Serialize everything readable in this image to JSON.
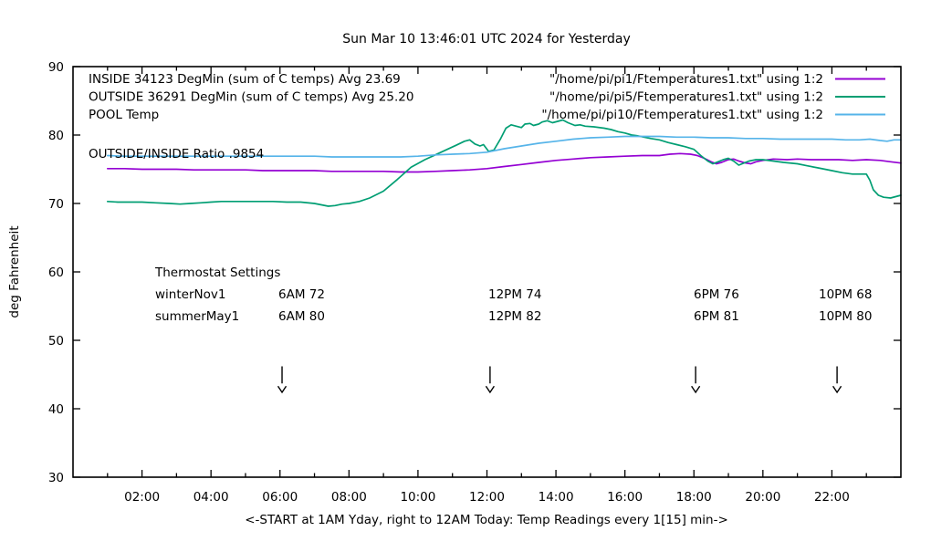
{
  "title": "Sun Mar 10 13:46:01 UTC 2024 for Yesterday",
  "legend": {
    "rows": [
      {
        "label": "INSIDE 34123 DegMin (sum of C temps) Avg 23.69",
        "file": "\"/home/pi/pi1/Ftemperatures1.txt\" using 1:2",
        "color": "#9400d3"
      },
      {
        "label": "OUTSIDE 36291 DegMin (sum of C temps) Avg 25.20",
        "file": "\"/home/pi/pi5/Ftemperatures1.txt\" using 1:2",
        "color": "#009e73"
      },
      {
        "label": "POOL Temp",
        "file": "\"/home/pi/pi10/Ftemperatures1.txt\" using 1:2",
        "color": "#56b4e9"
      }
    ]
  },
  "ratio_annotation": "OUTSIDE/INSIDE Ratio .9854",
  "thermostat": {
    "title": "Thermostat Settings",
    "rows": [
      {
        "name": "winterNov1",
        "entries": [
          "6AM 72",
          "12PM 74",
          "6PM 76",
          "10PM 68"
        ]
      },
      {
        "name": "summerMay1",
        "entries": [
          "6AM 80",
          "12PM 82",
          "6PM 81",
          "10PM 80"
        ]
      }
    ]
  },
  "axes": {
    "ylabel": "deg Fahrenheit",
    "xlabel": "<-START at 1AM Yday, right to 12AM Today:  Temp Readings every 1[15] min->"
  },
  "chart_data": {
    "type": "line",
    "title": "Sun Mar 10 13:46:01 UTC 2024 for Yesterday",
    "xlabel_hours_range": [
      0,
      24
    ],
    "ylim": [
      30,
      90
    ],
    "grid": false,
    "legend_position": "top-inside",
    "x_ticks": [
      {
        "hour": 2,
        "label": "02:00"
      },
      {
        "hour": 4,
        "label": "04:00"
      },
      {
        "hour": 6,
        "label": "06:00"
      },
      {
        "hour": 8,
        "label": "08:00"
      },
      {
        "hour": 10,
        "label": "10:00"
      },
      {
        "hour": 12,
        "label": "12:00"
      },
      {
        "hour": 14,
        "label": "14:00"
      },
      {
        "hour": 16,
        "label": "16:00"
      },
      {
        "hour": 18,
        "label": "18:00"
      },
      {
        "hour": 20,
        "label": "20:00"
      },
      {
        "hour": 22,
        "label": "22:00"
      }
    ],
    "y_ticks": [
      {
        "value": 90,
        "label": "90"
      },
      {
        "value": 80,
        "label": "80"
      },
      {
        "value": 70,
        "label": "70"
      },
      {
        "value": 60,
        "label": "60"
      },
      {
        "value": 50,
        "label": "50"
      },
      {
        "value": 40,
        "label": "40"
      },
      {
        "value": 30,
        "label": "30"
      }
    ],
    "minor_x_tick_every_hours": 1,
    "arrows": {
      "hours": [
        6.06,
        12.09,
        18.05,
        22.15
      ],
      "from_deg": 46.2,
      "to_deg": 42.4
    },
    "series": [
      {
        "name": "INSIDE",
        "color": "#9400d3",
        "points": [
          [
            1,
            75.1
          ],
          [
            1.5,
            75.1
          ],
          [
            2,
            75.0
          ],
          [
            2.5,
            75.0
          ],
          [
            3,
            75.0
          ],
          [
            3.5,
            74.9
          ],
          [
            4,
            74.9
          ],
          [
            4.5,
            74.9
          ],
          [
            5,
            74.9
          ],
          [
            5.5,
            74.8
          ],
          [
            6,
            74.8
          ],
          [
            6.5,
            74.8
          ],
          [
            7,
            74.8
          ],
          [
            7.5,
            74.7
          ],
          [
            8,
            74.7
          ],
          [
            8.5,
            74.7
          ],
          [
            9,
            74.7
          ],
          [
            9.5,
            74.6
          ],
          [
            10,
            74.6
          ],
          [
            10.5,
            74.7
          ],
          [
            11,
            74.8
          ],
          [
            11.5,
            74.9
          ],
          [
            12,
            75.1
          ],
          [
            12.5,
            75.4
          ],
          [
            13,
            75.7
          ],
          [
            13.5,
            76.0
          ],
          [
            14,
            76.3
          ],
          [
            14.5,
            76.5
          ],
          [
            15,
            76.7
          ],
          [
            15.5,
            76.8
          ],
          [
            16,
            76.9
          ],
          [
            16.5,
            77.0
          ],
          [
            17,
            77.0
          ],
          [
            17.3,
            77.2
          ],
          [
            17.6,
            77.3
          ],
          [
            17.9,
            77.2
          ],
          [
            18.1,
            77.0
          ],
          [
            18.3,
            76.6
          ],
          [
            18.5,
            76.1
          ],
          [
            18.65,
            75.8
          ],
          [
            18.8,
            76.0
          ],
          [
            19,
            76.4
          ],
          [
            19.15,
            76.5
          ],
          [
            19.3,
            76.2
          ],
          [
            19.5,
            75.9
          ],
          [
            19.65,
            75.8
          ],
          [
            19.8,
            76.1
          ],
          [
            20,
            76.3
          ],
          [
            20.3,
            76.5
          ],
          [
            20.7,
            76.4
          ],
          [
            21,
            76.5
          ],
          [
            21.4,
            76.4
          ],
          [
            21.8,
            76.4
          ],
          [
            22.2,
            76.4
          ],
          [
            22.6,
            76.3
          ],
          [
            23,
            76.4
          ],
          [
            23.4,
            76.3
          ],
          [
            23.7,
            76.1
          ],
          [
            24,
            75.9
          ]
        ]
      },
      {
        "name": "OUTSIDE",
        "color": "#009e73",
        "points": [
          [
            1,
            70.3
          ],
          [
            1.3,
            70.2
          ],
          [
            1.6,
            70.2
          ],
          [
            2,
            70.2
          ],
          [
            2.4,
            70.1
          ],
          [
            2.8,
            70.0
          ],
          [
            3.1,
            69.9
          ],
          [
            3.4,
            70.0
          ],
          [
            3.7,
            70.1
          ],
          [
            4,
            70.2
          ],
          [
            4.3,
            70.3
          ],
          [
            4.7,
            70.3
          ],
          [
            5,
            70.3
          ],
          [
            5.4,
            70.3
          ],
          [
            5.8,
            70.3
          ],
          [
            6.2,
            70.2
          ],
          [
            6.6,
            70.2
          ],
          [
            7,
            70.0
          ],
          [
            7.2,
            69.8
          ],
          [
            7.4,
            69.6
          ],
          [
            7.6,
            69.7
          ],
          [
            7.8,
            69.9
          ],
          [
            8,
            70.0
          ],
          [
            8.3,
            70.3
          ],
          [
            8.6,
            70.8
          ],
          [
            9,
            71.8
          ],
          [
            9.4,
            73.5
          ],
          [
            9.8,
            75.3
          ],
          [
            10.2,
            76.4
          ],
          [
            10.5,
            77.1
          ],
          [
            10.85,
            77.9
          ],
          [
            11.1,
            78.5
          ],
          [
            11.35,
            79.1
          ],
          [
            11.5,
            79.3
          ],
          [
            11.65,
            78.7
          ],
          [
            11.8,
            78.4
          ],
          [
            11.9,
            78.6
          ],
          [
            12.05,
            77.6
          ],
          [
            12.2,
            77.8
          ],
          [
            12.4,
            79.5
          ],
          [
            12.55,
            81.0
          ],
          [
            12.7,
            81.5
          ],
          [
            12.85,
            81.3
          ],
          [
            13,
            81.1
          ],
          [
            13.1,
            81.6
          ],
          [
            13.25,
            81.7
          ],
          [
            13.35,
            81.4
          ],
          [
            13.5,
            81.6
          ],
          [
            13.6,
            81.9
          ],
          [
            13.75,
            82.1
          ],
          [
            13.9,
            81.8
          ],
          [
            14.05,
            82.0
          ],
          [
            14.2,
            82.2
          ],
          [
            14.35,
            81.8
          ],
          [
            14.55,
            81.4
          ],
          [
            14.7,
            81.5
          ],
          [
            14.85,
            81.3
          ],
          [
            15.1,
            81.2
          ],
          [
            15.4,
            81.0
          ],
          [
            15.6,
            80.8
          ],
          [
            15.8,
            80.5
          ],
          [
            16,
            80.3
          ],
          [
            16.2,
            80.0
          ],
          [
            16.35,
            79.9
          ],
          [
            16.55,
            79.7
          ],
          [
            16.75,
            79.5
          ],
          [
            17,
            79.3
          ],
          [
            17.25,
            78.9
          ],
          [
            17.5,
            78.6
          ],
          [
            17.75,
            78.3
          ],
          [
            18,
            77.9
          ],
          [
            18.2,
            77.0
          ],
          [
            18.4,
            76.2
          ],
          [
            18.55,
            75.8
          ],
          [
            18.7,
            76.1
          ],
          [
            18.85,
            76.4
          ],
          [
            19,
            76.6
          ],
          [
            19.15,
            76.2
          ],
          [
            19.3,
            75.6
          ],
          [
            19.45,
            75.9
          ],
          [
            19.6,
            76.2
          ],
          [
            19.8,
            76.4
          ],
          [
            20,
            76.4
          ],
          [
            20.3,
            76.2
          ],
          [
            20.6,
            76.0
          ],
          [
            21,
            75.8
          ],
          [
            21.3,
            75.5
          ],
          [
            21.6,
            75.2
          ],
          [
            22,
            74.8
          ],
          [
            22.3,
            74.5
          ],
          [
            22.6,
            74.3
          ],
          [
            23,
            74.3
          ],
          [
            23.1,
            73.4
          ],
          [
            23.2,
            72.0
          ],
          [
            23.35,
            71.2
          ],
          [
            23.5,
            70.9
          ],
          [
            23.7,
            70.8
          ],
          [
            23.85,
            71.0
          ],
          [
            24,
            71.2
          ]
        ]
      },
      {
        "name": "POOL",
        "color": "#56b4e9",
        "points": [
          [
            1,
            77.0
          ],
          [
            1.5,
            76.9
          ],
          [
            2,
            76.9
          ],
          [
            2.5,
            76.9
          ],
          [
            3,
            76.9
          ],
          [
            3.5,
            76.9
          ],
          [
            4,
            76.9
          ],
          [
            4.5,
            76.9
          ],
          [
            5,
            76.9
          ],
          [
            5.5,
            76.9
          ],
          [
            6,
            76.9
          ],
          [
            6.5,
            76.9
          ],
          [
            7,
            76.9
          ],
          [
            7.5,
            76.8
          ],
          [
            8,
            76.8
          ],
          [
            8.5,
            76.8
          ],
          [
            9,
            76.8
          ],
          [
            9.5,
            76.8
          ],
          [
            10,
            76.9
          ],
          [
            10.5,
            77.1
          ],
          [
            11,
            77.2
          ],
          [
            11.5,
            77.3
          ],
          [
            12,
            77.5
          ],
          [
            12.5,
            78.0
          ],
          [
            13,
            78.4
          ],
          [
            13.5,
            78.8
          ],
          [
            14,
            79.1
          ],
          [
            14.5,
            79.4
          ],
          [
            15,
            79.6
          ],
          [
            15.5,
            79.7
          ],
          [
            16,
            79.8
          ],
          [
            16.5,
            79.8
          ],
          [
            17,
            79.8
          ],
          [
            17.5,
            79.7
          ],
          [
            18,
            79.7
          ],
          [
            18.5,
            79.6
          ],
          [
            19,
            79.6
          ],
          [
            19.5,
            79.5
          ],
          [
            20,
            79.5
          ],
          [
            20.5,
            79.4
          ],
          [
            21,
            79.4
          ],
          [
            21.5,
            79.4
          ],
          [
            22,
            79.4
          ],
          [
            22.4,
            79.3
          ],
          [
            22.8,
            79.3
          ],
          [
            23.1,
            79.4
          ],
          [
            23.4,
            79.2
          ],
          [
            23.6,
            79.1
          ],
          [
            23.8,
            79.3
          ],
          [
            24,
            79.3
          ]
        ]
      }
    ]
  }
}
